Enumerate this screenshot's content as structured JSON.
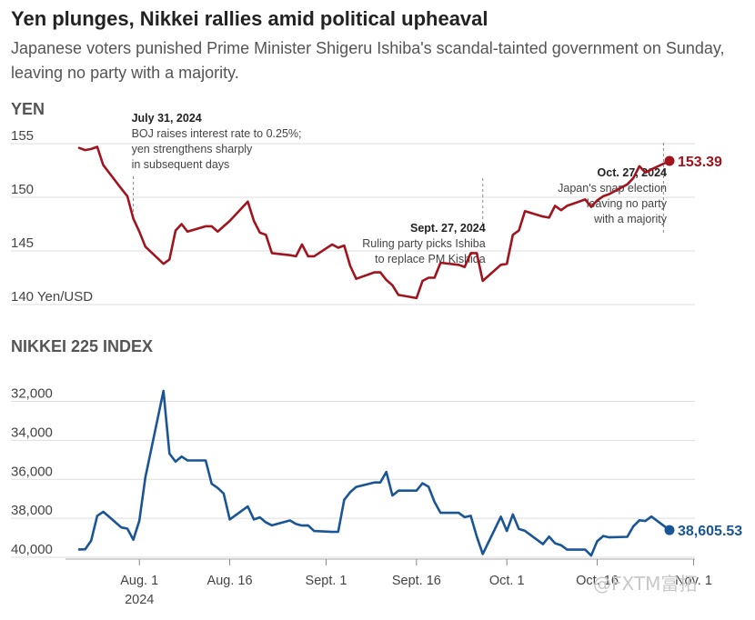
{
  "title": "Yen plunges, Nikkei rallies amid political upheaval",
  "subtitle": "Japanese voters punished Prime Minister Shigeru Ishiba's scandal-tainted government on Sunday, leaving no party with a majority.",
  "watermark": "@FXTM富拓",
  "colors": {
    "yen": "#a0141e",
    "nikkei": "#1a5596",
    "grid": "#dddddd"
  },
  "x_ticks": [
    {
      "date": "2024-08-01",
      "label": "Aug. 1",
      "sublabel": "2024"
    },
    {
      "date": "2024-08-16",
      "label": "Aug. 16",
      "sublabel": ""
    },
    {
      "date": "2024-09-01",
      "label": "Sept. 1",
      "sublabel": ""
    },
    {
      "date": "2024-09-16",
      "label": "Sept. 16",
      "sublabel": ""
    },
    {
      "date": "2024-10-01",
      "label": "Oct. 1",
      "sublabel": ""
    },
    {
      "date": "2024-10-16",
      "label": "Oct. 16",
      "sublabel": ""
    },
    {
      "date": "2024-11-01",
      "label": "Nov. 1",
      "sublabel": ""
    }
  ],
  "chart_data": [
    {
      "type": "line",
      "title": "YEN",
      "ylabel": "Yen/USD",
      "y_inverted": true,
      "ylim": [
        155,
        140
      ],
      "yticks": [
        {
          "value": 140,
          "label": "140 Yen/USD"
        },
        {
          "value": 145,
          "label": "145"
        },
        {
          "value": 150,
          "label": "150"
        },
        {
          "value": 155,
          "label": "155"
        }
      ],
      "grid": true,
      "end_label": "153.39",
      "annotations": [
        {
          "date": "2024-07-31",
          "bold": "July 31, 2024",
          "lines": [
            "BOJ raises interest rate to 0.25%;",
            "yen strengthens sharply",
            "in subsequent days"
          ]
        },
        {
          "date": "2024-09-27",
          "bold": "Sept. 27, 2024",
          "lines": [
            "Ruling party picks Ishiba",
            "to replace PM Kishida"
          ]
        },
        {
          "date": "2024-10-27",
          "bold": "Oct. 27, 2024",
          "lines": [
            "Japan's snap election",
            "leaving no party",
            "with a majority"
          ]
        }
      ],
      "series": [
        {
          "points": [
            [
              "2024-07-22",
              154.6
            ],
            [
              "2024-07-23",
              154.4
            ],
            [
              "2024-07-24",
              154.5
            ],
            [
              "2024-07-25",
              154.7
            ],
            [
              "2024-07-26",
              153.0
            ],
            [
              "2024-07-29",
              150.8
            ],
            [
              "2024-07-30",
              150.1
            ],
            [
              "2024-07-31",
              148.0
            ],
            [
              "2024-08-01",
              146.8
            ],
            [
              "2024-08-02",
              145.4
            ],
            [
              "2024-08-05",
              143.8
            ],
            [
              "2024-08-06",
              144.2
            ],
            [
              "2024-08-07",
              146.9
            ],
            [
              "2024-08-08",
              147.5
            ],
            [
              "2024-08-09",
              146.8
            ],
            [
              "2024-08-12",
              147.3
            ],
            [
              "2024-08-13",
              147.3
            ],
            [
              "2024-08-14",
              146.8
            ],
            [
              "2024-08-15",
              147.3
            ],
            [
              "2024-08-16",
              147.8
            ],
            [
              "2024-08-19",
              149.6
            ],
            [
              "2024-08-20",
              147.8
            ],
            [
              "2024-08-21",
              146.7
            ],
            [
              "2024-08-22",
              146.5
            ],
            [
              "2024-08-23",
              144.8
            ],
            [
              "2024-08-26",
              144.6
            ],
            [
              "2024-08-27",
              144.5
            ],
            [
              "2024-08-28",
              145.6
            ],
            [
              "2024-08-29",
              144.5
            ],
            [
              "2024-08-30",
              144.5
            ],
            [
              "2024-09-02",
              145.6
            ],
            [
              "2024-09-03",
              145.3
            ],
            [
              "2024-09-04",
              145.5
            ],
            [
              "2024-09-05",
              143.6
            ],
            [
              "2024-09-06",
              142.4
            ],
            [
              "2024-09-09",
              143.0
            ],
            [
              "2024-09-10",
              143.0
            ],
            [
              "2024-09-11",
              142.3
            ],
            [
              "2024-09-12",
              141.8
            ],
            [
              "2024-09-13",
              140.9
            ],
            [
              "2024-09-16",
              140.6
            ],
            [
              "2024-09-17",
              142.2
            ],
            [
              "2024-09-18",
              142.5
            ],
            [
              "2024-09-19",
              142.5
            ],
            [
              "2024-09-20",
              143.9
            ],
            [
              "2024-09-23",
              143.7
            ],
            [
              "2024-09-24",
              143.5
            ],
            [
              "2024-09-25",
              144.8
            ],
            [
              "2024-09-26",
              144.8
            ],
            [
              "2024-09-27",
              142.2
            ],
            [
              "2024-09-30",
              143.7
            ],
            [
              "2024-10-01",
              143.8
            ],
            [
              "2024-10-02",
              146.5
            ],
            [
              "2024-10-03",
              146.9
            ],
            [
              "2024-10-04",
              148.7
            ],
            [
              "2024-10-07",
              148.2
            ],
            [
              "2024-10-08",
              148.1
            ],
            [
              "2024-10-09",
              149.2
            ],
            [
              "2024-10-10",
              148.8
            ],
            [
              "2024-10-11",
              149.2
            ],
            [
              "2024-10-14",
              149.8
            ],
            [
              "2024-10-15",
              149.1
            ],
            [
              "2024-10-16",
              149.7
            ],
            [
              "2024-10-17",
              150.1
            ],
            [
              "2024-10-18",
              150.3
            ],
            [
              "2024-10-21",
              151.2
            ],
            [
              "2024-10-22",
              151.8
            ],
            [
              "2024-10-23",
              152.9
            ],
            [
              "2024-10-24",
              152.3
            ],
            [
              "2024-10-25",
              152.6
            ],
            [
              "2024-10-28",
              153.39
            ]
          ]
        }
      ]
    },
    {
      "type": "line",
      "title": "NIKKEI 225 INDEX",
      "ylabel": "",
      "ylim": [
        30900,
        40000
      ],
      "yticks": [
        {
          "value": 40000,
          "label": "40,000"
        },
        {
          "value": 38000,
          "label": "38,000"
        },
        {
          "value": 36000,
          "label": "36,000"
        },
        {
          "value": 34000,
          "label": "34,000"
        },
        {
          "value": 32000,
          "label": "32,000"
        }
      ],
      "grid": true,
      "end_label": "38,605.53",
      "series": [
        {
          "points": [
            [
              "2024-07-22",
              39600
            ],
            [
              "2024-07-23",
              39590
            ],
            [
              "2024-07-24",
              39150
            ],
            [
              "2024-07-25",
              37870
            ],
            [
              "2024-07-26",
              37660
            ],
            [
              "2024-07-29",
              38470
            ],
            [
              "2024-07-30",
              38530
            ],
            [
              "2024-07-31",
              39100
            ],
            [
              "2024-08-01",
              38120
            ],
            [
              "2024-08-02",
              35900
            ],
            [
              "2024-08-05",
              31460
            ],
            [
              "2024-08-06",
              34680
            ],
            [
              "2024-08-07",
              35090
            ],
            [
              "2024-08-08",
              34830
            ],
            [
              "2024-08-09",
              35030
            ],
            [
              "2024-08-12",
              35030
            ],
            [
              "2024-08-13",
              36230
            ],
            [
              "2024-08-14",
              36440
            ],
            [
              "2024-08-15",
              36730
            ],
            [
              "2024-08-16",
              38060
            ],
            [
              "2024-08-19",
              37390
            ],
            [
              "2024-08-20",
              38060
            ],
            [
              "2024-08-21",
              37950
            ],
            [
              "2024-08-22",
              38210
            ],
            [
              "2024-08-23",
              38360
            ],
            [
              "2024-08-26",
              38110
            ],
            [
              "2024-08-27",
              38290
            ],
            [
              "2024-08-28",
              38370
            ],
            [
              "2024-08-29",
              38360
            ],
            [
              "2024-08-30",
              38650
            ],
            [
              "2024-09-02",
              38700
            ],
            [
              "2024-09-03",
              38690
            ],
            [
              "2024-09-04",
              37050
            ],
            [
              "2024-09-05",
              36660
            ],
            [
              "2024-09-06",
              36390
            ],
            [
              "2024-09-09",
              36160
            ],
            [
              "2024-09-10",
              36160
            ],
            [
              "2024-09-11",
              35620
            ],
            [
              "2024-09-12",
              36830
            ],
            [
              "2024-09-13",
              36580
            ],
            [
              "2024-09-16",
              36580
            ],
            [
              "2024-09-17",
              36200
            ],
            [
              "2024-09-18",
              36380
            ],
            [
              "2024-09-19",
              37160
            ],
            [
              "2024-09-20",
              37720
            ],
            [
              "2024-09-23",
              37720
            ],
            [
              "2024-09-24",
              37940
            ],
            [
              "2024-09-25",
              37870
            ],
            [
              "2024-09-26",
              38930
            ],
            [
              "2024-09-27",
              39830
            ],
            [
              "2024-09-30",
              37920
            ],
            [
              "2024-10-01",
              38650
            ],
            [
              "2024-10-02",
              37800
            ],
            [
              "2024-10-03",
              38550
            ],
            [
              "2024-10-04",
              38640
            ],
            [
              "2024-10-07",
              39330
            ],
            [
              "2024-10-08",
              38940
            ],
            [
              "2024-10-09",
              39280
            ],
            [
              "2024-10-10",
              39380
            ],
            [
              "2024-10-11",
              39610
            ],
            [
              "2024-10-14",
              39610
            ],
            [
              "2024-10-15",
              39910
            ],
            [
              "2024-10-16",
              39180
            ],
            [
              "2024-10-17",
              38910
            ],
            [
              "2024-10-18",
              38980
            ],
            [
              "2024-10-21",
              38950
            ],
            [
              "2024-10-22",
              38410
            ],
            [
              "2024-10-23",
              38100
            ],
            [
              "2024-10-24",
              38140
            ],
            [
              "2024-10-25",
              37910
            ],
            [
              "2024-10-28",
              38605.53
            ]
          ]
        }
      ]
    }
  ]
}
